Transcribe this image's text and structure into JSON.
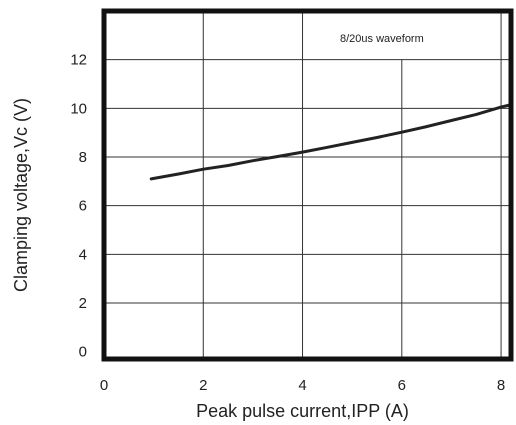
{
  "chart_data": {
    "type": "line",
    "title": "",
    "xlabel": "Peak pulse current,IPP (A)",
    "ylabel": "Clamping voltage,Vc (V)",
    "annotation": "8/20us waveform",
    "xlim": [
      0,
      8.2
    ],
    "ylim": [
      -0.3,
      14
    ],
    "x_ticks": [
      0,
      2,
      4,
      6,
      8
    ],
    "y_ticks": [
      0,
      2,
      4,
      6,
      8,
      10,
      12
    ],
    "grid": true,
    "series": [
      {
        "x": [
          0.95,
          1.5,
          2,
          2.5,
          3,
          3.5,
          4,
          4.5,
          5,
          5.5,
          6,
          6.5,
          7,
          7.5,
          8,
          8.2
        ],
        "y": [
          7.1,
          7.3,
          7.5,
          7.65,
          7.85,
          8.02,
          8.2,
          8.4,
          8.6,
          8.8,
          9.02,
          9.25,
          9.5,
          9.75,
          10.05,
          10.15
        ]
      }
    ]
  }
}
